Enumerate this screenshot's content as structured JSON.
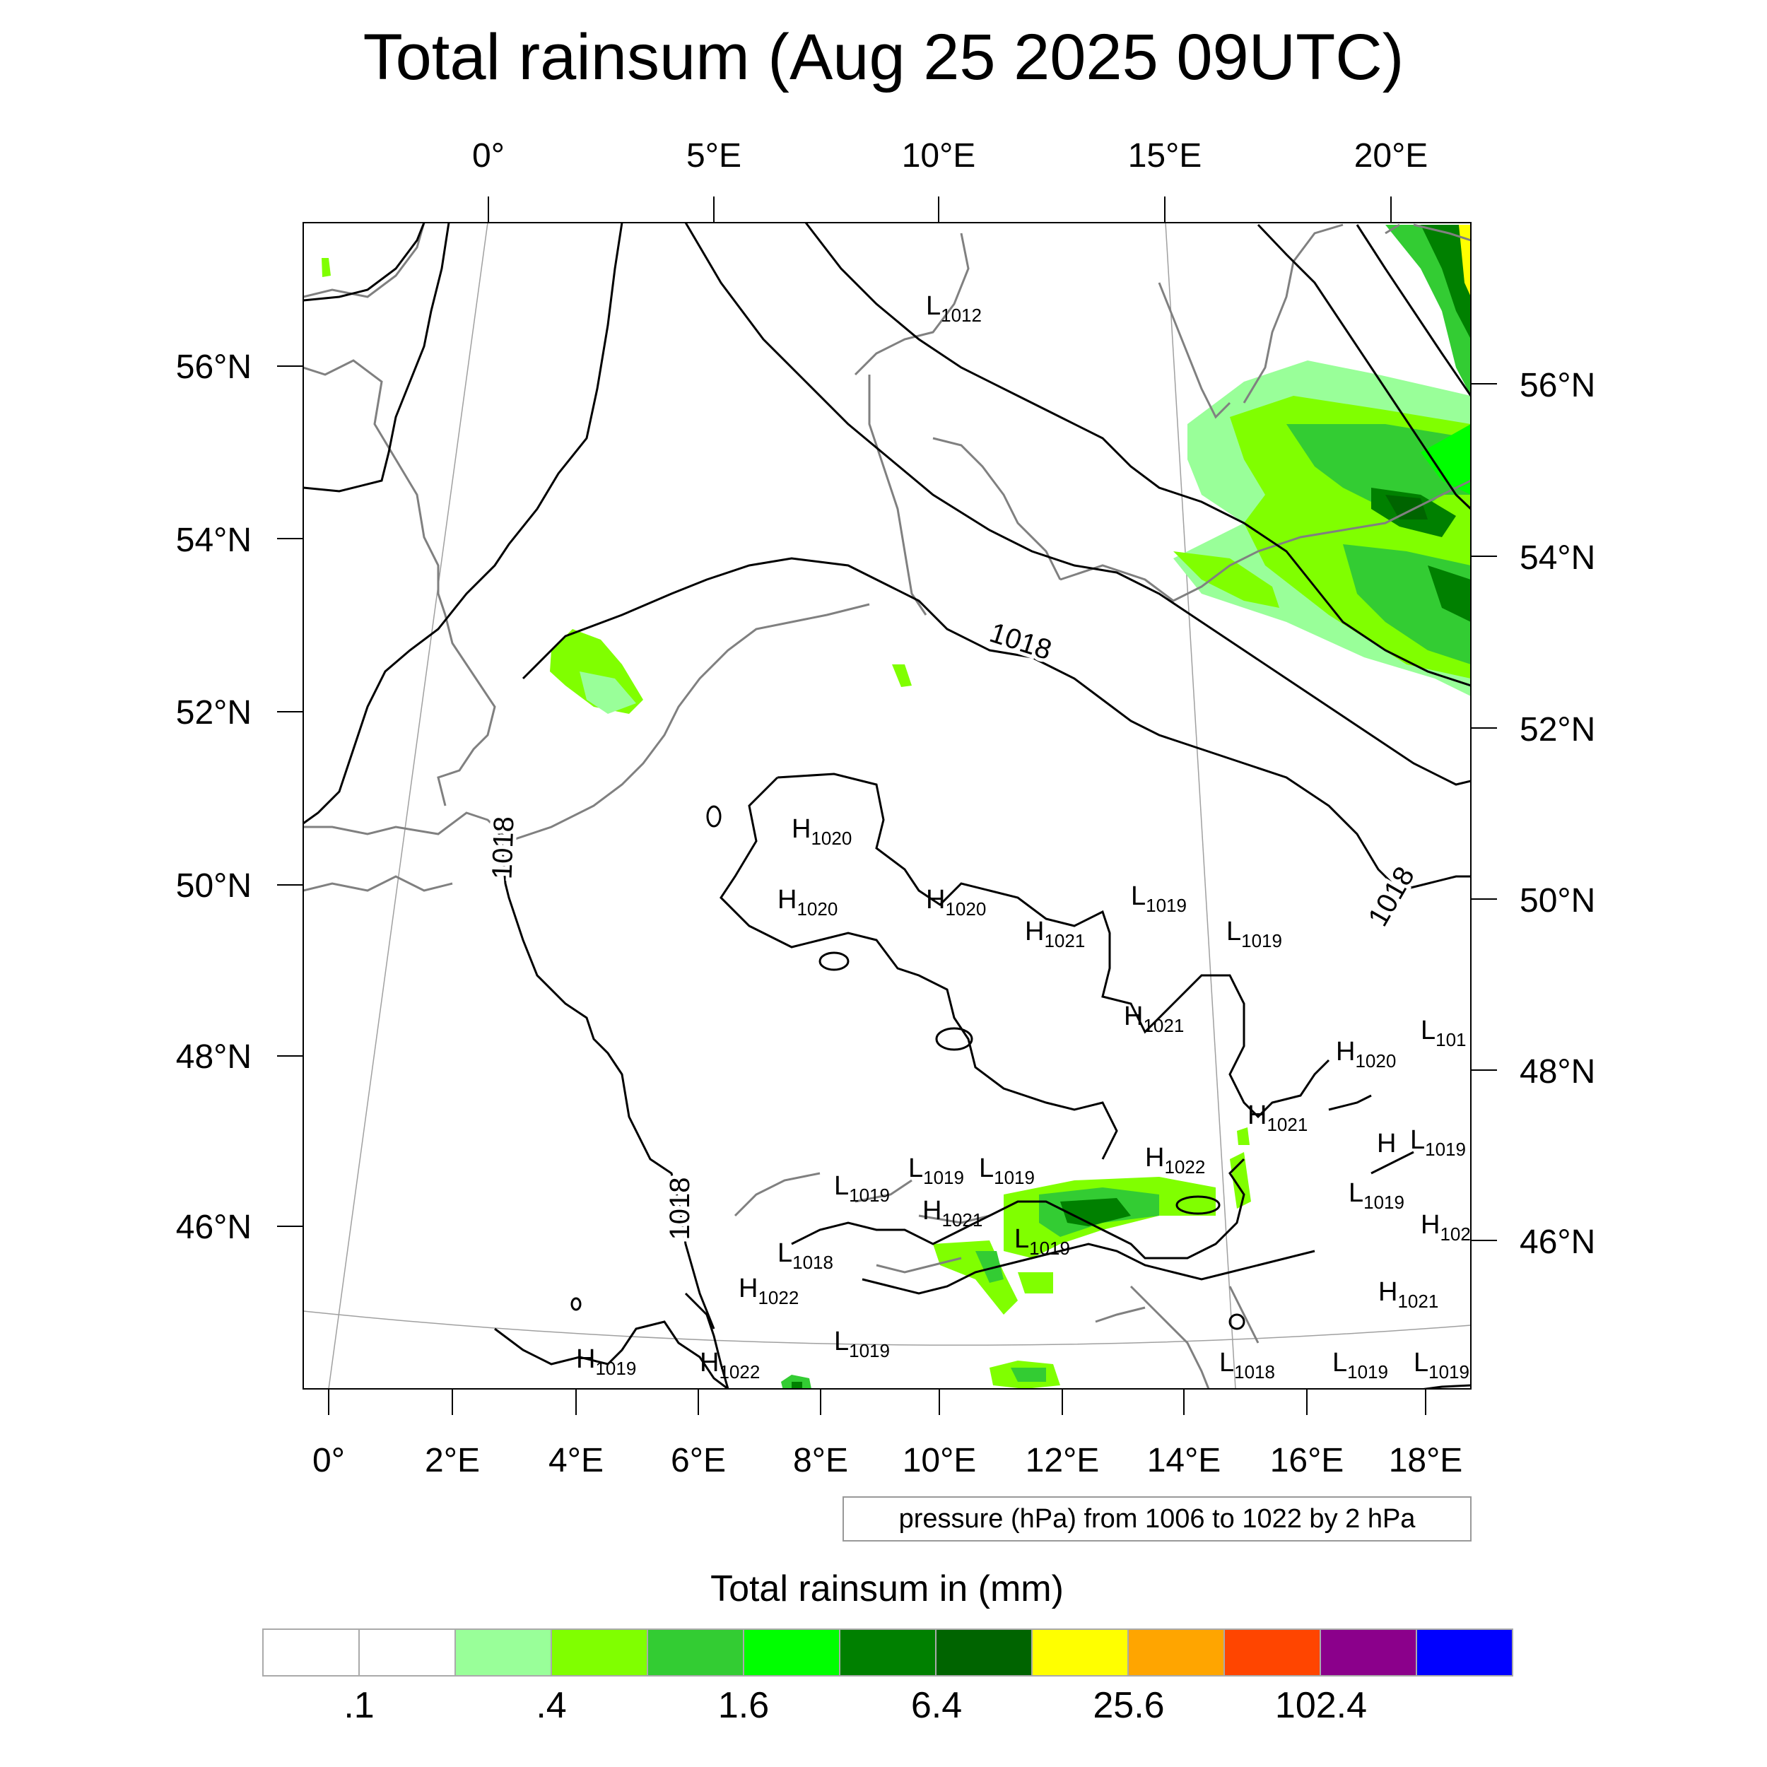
{
  "title": "Total rainsum (Aug 25 2025 09UTC)",
  "top_lon_labels": [
    "0°",
    "5°E",
    "10°E",
    "15°E",
    "20°E"
  ],
  "bottom_lon_labels": [
    "0°",
    "2°E",
    "4°E",
    "6°E",
    "8°E",
    "10°E",
    "12°E",
    "14°E",
    "16°E",
    "18°E"
  ],
  "left_lat_labels": [
    "56°N",
    "54°N",
    "52°N",
    "50°N",
    "48°N",
    "46°N"
  ],
  "right_lat_labels": [
    "56°N",
    "54°N",
    "52°N",
    "50°N",
    "48°N",
    "46°N"
  ],
  "isobar_labels": [
    "1018",
    "1018",
    "1018",
    "1018"
  ],
  "pressure_centers": [
    {
      "letter": "L",
      "value": "1012"
    },
    {
      "letter": "H",
      "value": "1020"
    },
    {
      "letter": "H",
      "value": "1020"
    },
    {
      "letter": "H",
      "value": "1020"
    },
    {
      "letter": "H",
      "value": "1021"
    },
    {
      "letter": "L",
      "value": "1019"
    },
    {
      "letter": "L",
      "value": "1019"
    },
    {
      "letter": "H",
      "value": "1021"
    },
    {
      "letter": "H",
      "value": "1020"
    },
    {
      "letter": "L",
      "value": "101"
    },
    {
      "letter": "H",
      "value": "1021"
    },
    {
      "letter": "H",
      "value": "1022"
    },
    {
      "letter": "H",
      "value": ""
    },
    {
      "letter": "L",
      "value": "1019"
    },
    {
      "letter": "L",
      "value": "1019"
    },
    {
      "letter": "L",
      "value": "1019"
    },
    {
      "letter": "L",
      "value": "1019"
    },
    {
      "letter": "H",
      "value": "1021"
    },
    {
      "letter": "L",
      "value": "1019"
    },
    {
      "letter": "L",
      "value": "1018"
    },
    {
      "letter": "H",
      "value": "1022"
    },
    {
      "letter": "L",
      "value": "1019"
    },
    {
      "letter": "H",
      "value": "1019"
    },
    {
      "letter": "H",
      "value": "1022"
    },
    {
      "letter": "L",
      "value": "1018"
    },
    {
      "letter": "L",
      "value": "1019"
    },
    {
      "letter": "L",
      "value": "1019"
    },
    {
      "letter": "H",
      "value": "102"
    },
    {
      "letter": "H",
      "value": "1021"
    },
    {
      "letter": "L",
      "value": "1019"
    }
  ],
  "contour_info": "pressure (hPa) from 1006 to 1022 by 2 hPa",
  "colorbar": {
    "title": "Total rainsum in (mm)",
    "colors": [
      "#ffffff",
      "#ffffff",
      "#99ff99",
      "#80ff00",
      "#33cc33",
      "#00ff00",
      "#008000",
      "#006400",
      "#ffff00",
      "#ffa500",
      "#ff4500",
      "#8b008b",
      "#0000ff"
    ],
    "labels": [
      ".1",
      ".4",
      "1.6",
      "6.4",
      "25.6",
      "102.4"
    ]
  }
}
